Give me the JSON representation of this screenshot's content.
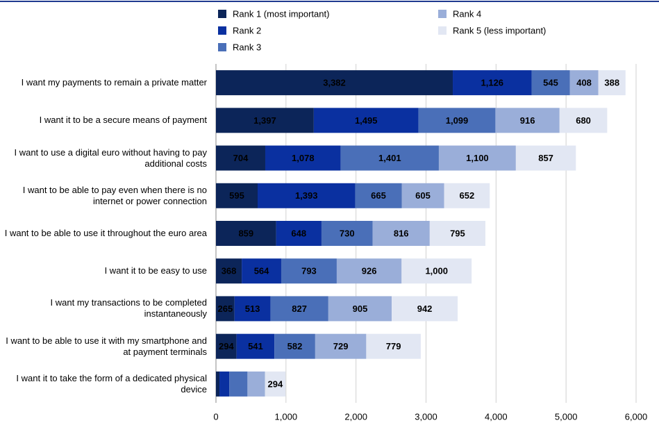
{
  "chart_data": {
    "type": "stacked-barh",
    "categories": [
      "I want my payments to remain a private matter",
      "I want it to be a secure means of payment",
      "I want to use a digital euro without having to pay additional costs",
      "I want to be able to pay even when there is no internet or power connection",
      "I want to be able to use it throughout the euro area",
      "I want it to be easy to use",
      "I want my transactions to be completed instantaneously",
      "I want to be able to use it with my smartphone and at payment terminals",
      "I want it to take the form of a dedicated physical device"
    ],
    "series": [
      {
        "name": "Rank 1 (most important)",
        "color": "#0c2559",
        "values": [
          3382,
          1397,
          704,
          595,
          859,
          368,
          265,
          294,
          50
        ],
        "value_labels": [
          "3,382",
          "1,397",
          "704",
          "595",
          "859",
          "368",
          "265",
          "294",
          null
        ]
      },
      {
        "name": "Rank 2",
        "color": "#0a30a0",
        "values": [
          1126,
          1495,
          1078,
          1393,
          648,
          564,
          513,
          541,
          140
        ],
        "value_labels": [
          "1,126",
          "1,495",
          "1,078",
          "1,393",
          "648",
          "564",
          "513",
          "541",
          null
        ]
      },
      {
        "name": "Rank 3",
        "color": "#4a6fb8",
        "values": [
          545,
          1099,
          1401,
          665,
          730,
          793,
          827,
          582,
          260
        ],
        "value_labels": [
          "545",
          "1,099",
          "1,401",
          "665",
          "730",
          "793",
          "827",
          "582",
          null
        ]
      },
      {
        "name": "Rank 4",
        "color": "#9aaed9",
        "values": [
          408,
          916,
          1100,
          605,
          816,
          926,
          905,
          729,
          250
        ],
        "value_labels": [
          "408",
          "916",
          "1,100",
          "605",
          "816",
          "926",
          "905",
          "729",
          null
        ]
      },
      {
        "name": "Rank 5 (less important)",
        "color": "#e2e7f3",
        "values": [
          388,
          680,
          857,
          652,
          795,
          1000,
          942,
          779,
          294
        ],
        "value_labels": [
          "388",
          "680",
          "857",
          "652",
          "795",
          "1,000",
          "942",
          "779",
          "294"
        ]
      }
    ],
    "xlim": [
      0,
      6000
    ],
    "xticks": [
      0,
      {
        "value": 1000,
        "label": "1,000"
      },
      {
        "value": 2000,
        "label": "2,000"
      },
      {
        "value": 3000,
        "label": "3,000"
      },
      {
        "value": 4000,
        "label": "4,000"
      },
      {
        "value": 5000,
        "label": "5,000"
      },
      {
        "value": 6000,
        "label": "6,000"
      }
    ],
    "grid": true,
    "legend": "top"
  }
}
